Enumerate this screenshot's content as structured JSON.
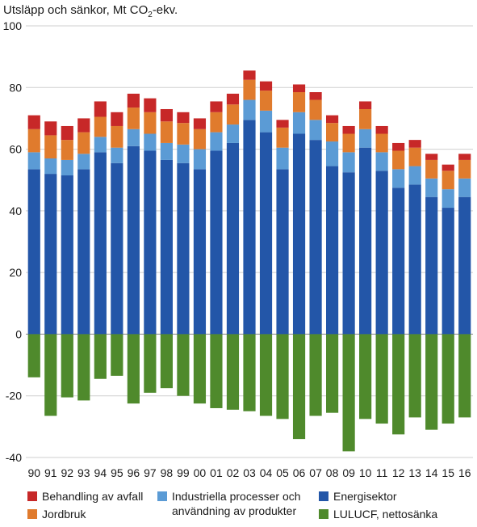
{
  "chart_data": {
    "type": "bar",
    "stacked": true,
    "title_prefix": "Utsläpp och sänkor, Mt CO",
    "title_sub": "2",
    "title_suffix": "-ekv.",
    "categories": [
      "90",
      "91",
      "92",
      "93",
      "94",
      "95",
      "96",
      "97",
      "98",
      "99",
      "00",
      "01",
      "02",
      "03",
      "04",
      "05",
      "06",
      "07",
      "08",
      "09",
      "10",
      "11",
      "12",
      "13",
      "14",
      "15",
      "16"
    ],
    "ylim": [
      -40,
      100
    ],
    "yticks": [
      -40,
      -20,
      0,
      20,
      40,
      60,
      80,
      100
    ],
    "grid": true,
    "legend_position": "bottom",
    "series": [
      {
        "name": "Energisektor",
        "color": "#2356a8",
        "values": [
          53.5,
          52,
          51.5,
          53.5,
          59,
          55.5,
          61,
          59.5,
          56.5,
          55.5,
          53.5,
          59.5,
          62,
          69.5,
          65.5,
          53.5,
          65,
          63,
          54.5,
          52.5,
          60.5,
          53,
          47.5,
          48.5,
          44.5,
          41,
          44.5
        ]
      },
      {
        "name": "Industriella processer och användning av produkter",
        "color": "#5b9bd5",
        "values": [
          5.5,
          5,
          5,
          5,
          5,
          5,
          5.5,
          5.5,
          5.5,
          6,
          6.5,
          6,
          6,
          6.5,
          7,
          7,
          7,
          6.5,
          8,
          6.5,
          6,
          6,
          6,
          6,
          6,
          6,
          6
        ]
      },
      {
        "name": "Jordbruk",
        "color": "#e07b2d",
        "values": [
          7.5,
          7.5,
          6.5,
          7,
          6.5,
          7,
          7,
          7,
          7,
          7,
          6.5,
          6.5,
          6.5,
          6.5,
          6.5,
          6.5,
          6.5,
          6.5,
          6,
          6,
          6.5,
          6,
          6,
          6,
          6,
          6,
          6
        ]
      },
      {
        "name": "Behandling av avfall",
        "color": "#c72828",
        "values": [
          4.5,
          4.5,
          4.5,
          4.5,
          5,
          4.5,
          4.5,
          4.5,
          4,
          3.5,
          3.5,
          3.5,
          3.5,
          3,
          3,
          2.5,
          2.5,
          2.5,
          2.5,
          2.5,
          2.5,
          2.5,
          2.5,
          2.5,
          2,
          2,
          2
        ]
      },
      {
        "name": "LULUCF, nettosänka",
        "color": "#4f8a2c",
        "values": [
          -14,
          -26.5,
          -20.5,
          -21.5,
          -14.5,
          -13.5,
          -22.5,
          -19,
          -17.5,
          -20,
          -22.5,
          -24,
          -24.5,
          -25,
          -26.5,
          -27.5,
          -34,
          -26.5,
          -25.5,
          -38,
          -27.5,
          -29,
          -32.5,
          -27,
          -31,
          -29,
          -27
        ]
      }
    ],
    "legend": {
      "avfall": "Behandling av avfall",
      "jordbruk": "Jordbruk",
      "industri_line1": "Industriella processer och",
      "industri_line2": "användning av produkter",
      "energi": "Energisektor",
      "lulucf": "LULUCF, nettosänka"
    }
  }
}
